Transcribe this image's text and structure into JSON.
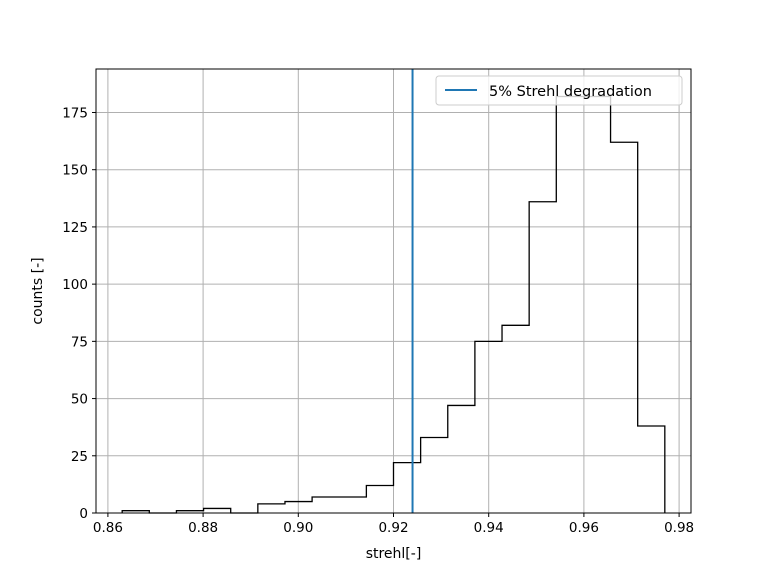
{
  "chart_data": {
    "type": "histogram",
    "xlabel": "strehl[-]",
    "ylabel": "counts [-]",
    "xlim": [
      0.8575,
      0.9825
    ],
    "ylim": [
      0,
      194
    ],
    "x_ticks": [
      0.86,
      0.88,
      0.9,
      0.92,
      0.94,
      0.96,
      0.98
    ],
    "x_tick_labels": [
      "0.86",
      "0.88",
      "0.90",
      "0.92",
      "0.94",
      "0.96",
      "0.98"
    ],
    "y_ticks": [
      0,
      25,
      50,
      75,
      100,
      125,
      150,
      175
    ],
    "y_tick_labels": [
      "0",
      "25",
      "50",
      "75",
      "100",
      "125",
      "150",
      "175"
    ],
    "grid": true,
    "legend_position": "top-right",
    "histogram": {
      "color": "#000000",
      "bin_edges": [
        0.863,
        0.8687,
        0.8744,
        0.8801,
        0.8858,
        0.8915,
        0.8972,
        0.9029,
        0.9086,
        0.9143,
        0.92,
        0.9257,
        0.9314,
        0.9371,
        0.9428,
        0.9485,
        0.9542,
        0.9599,
        0.9656,
        0.9713,
        0.977
      ],
      "counts": [
        1,
        0,
        1,
        2,
        0,
        4,
        5,
        7,
        7,
        12,
        22,
        33,
        47,
        75,
        82,
        136,
        182,
        182,
        162,
        38
      ]
    },
    "vline": {
      "name": "5% Strehl degradation",
      "x": 0.924,
      "color": "#1f77b4"
    }
  }
}
